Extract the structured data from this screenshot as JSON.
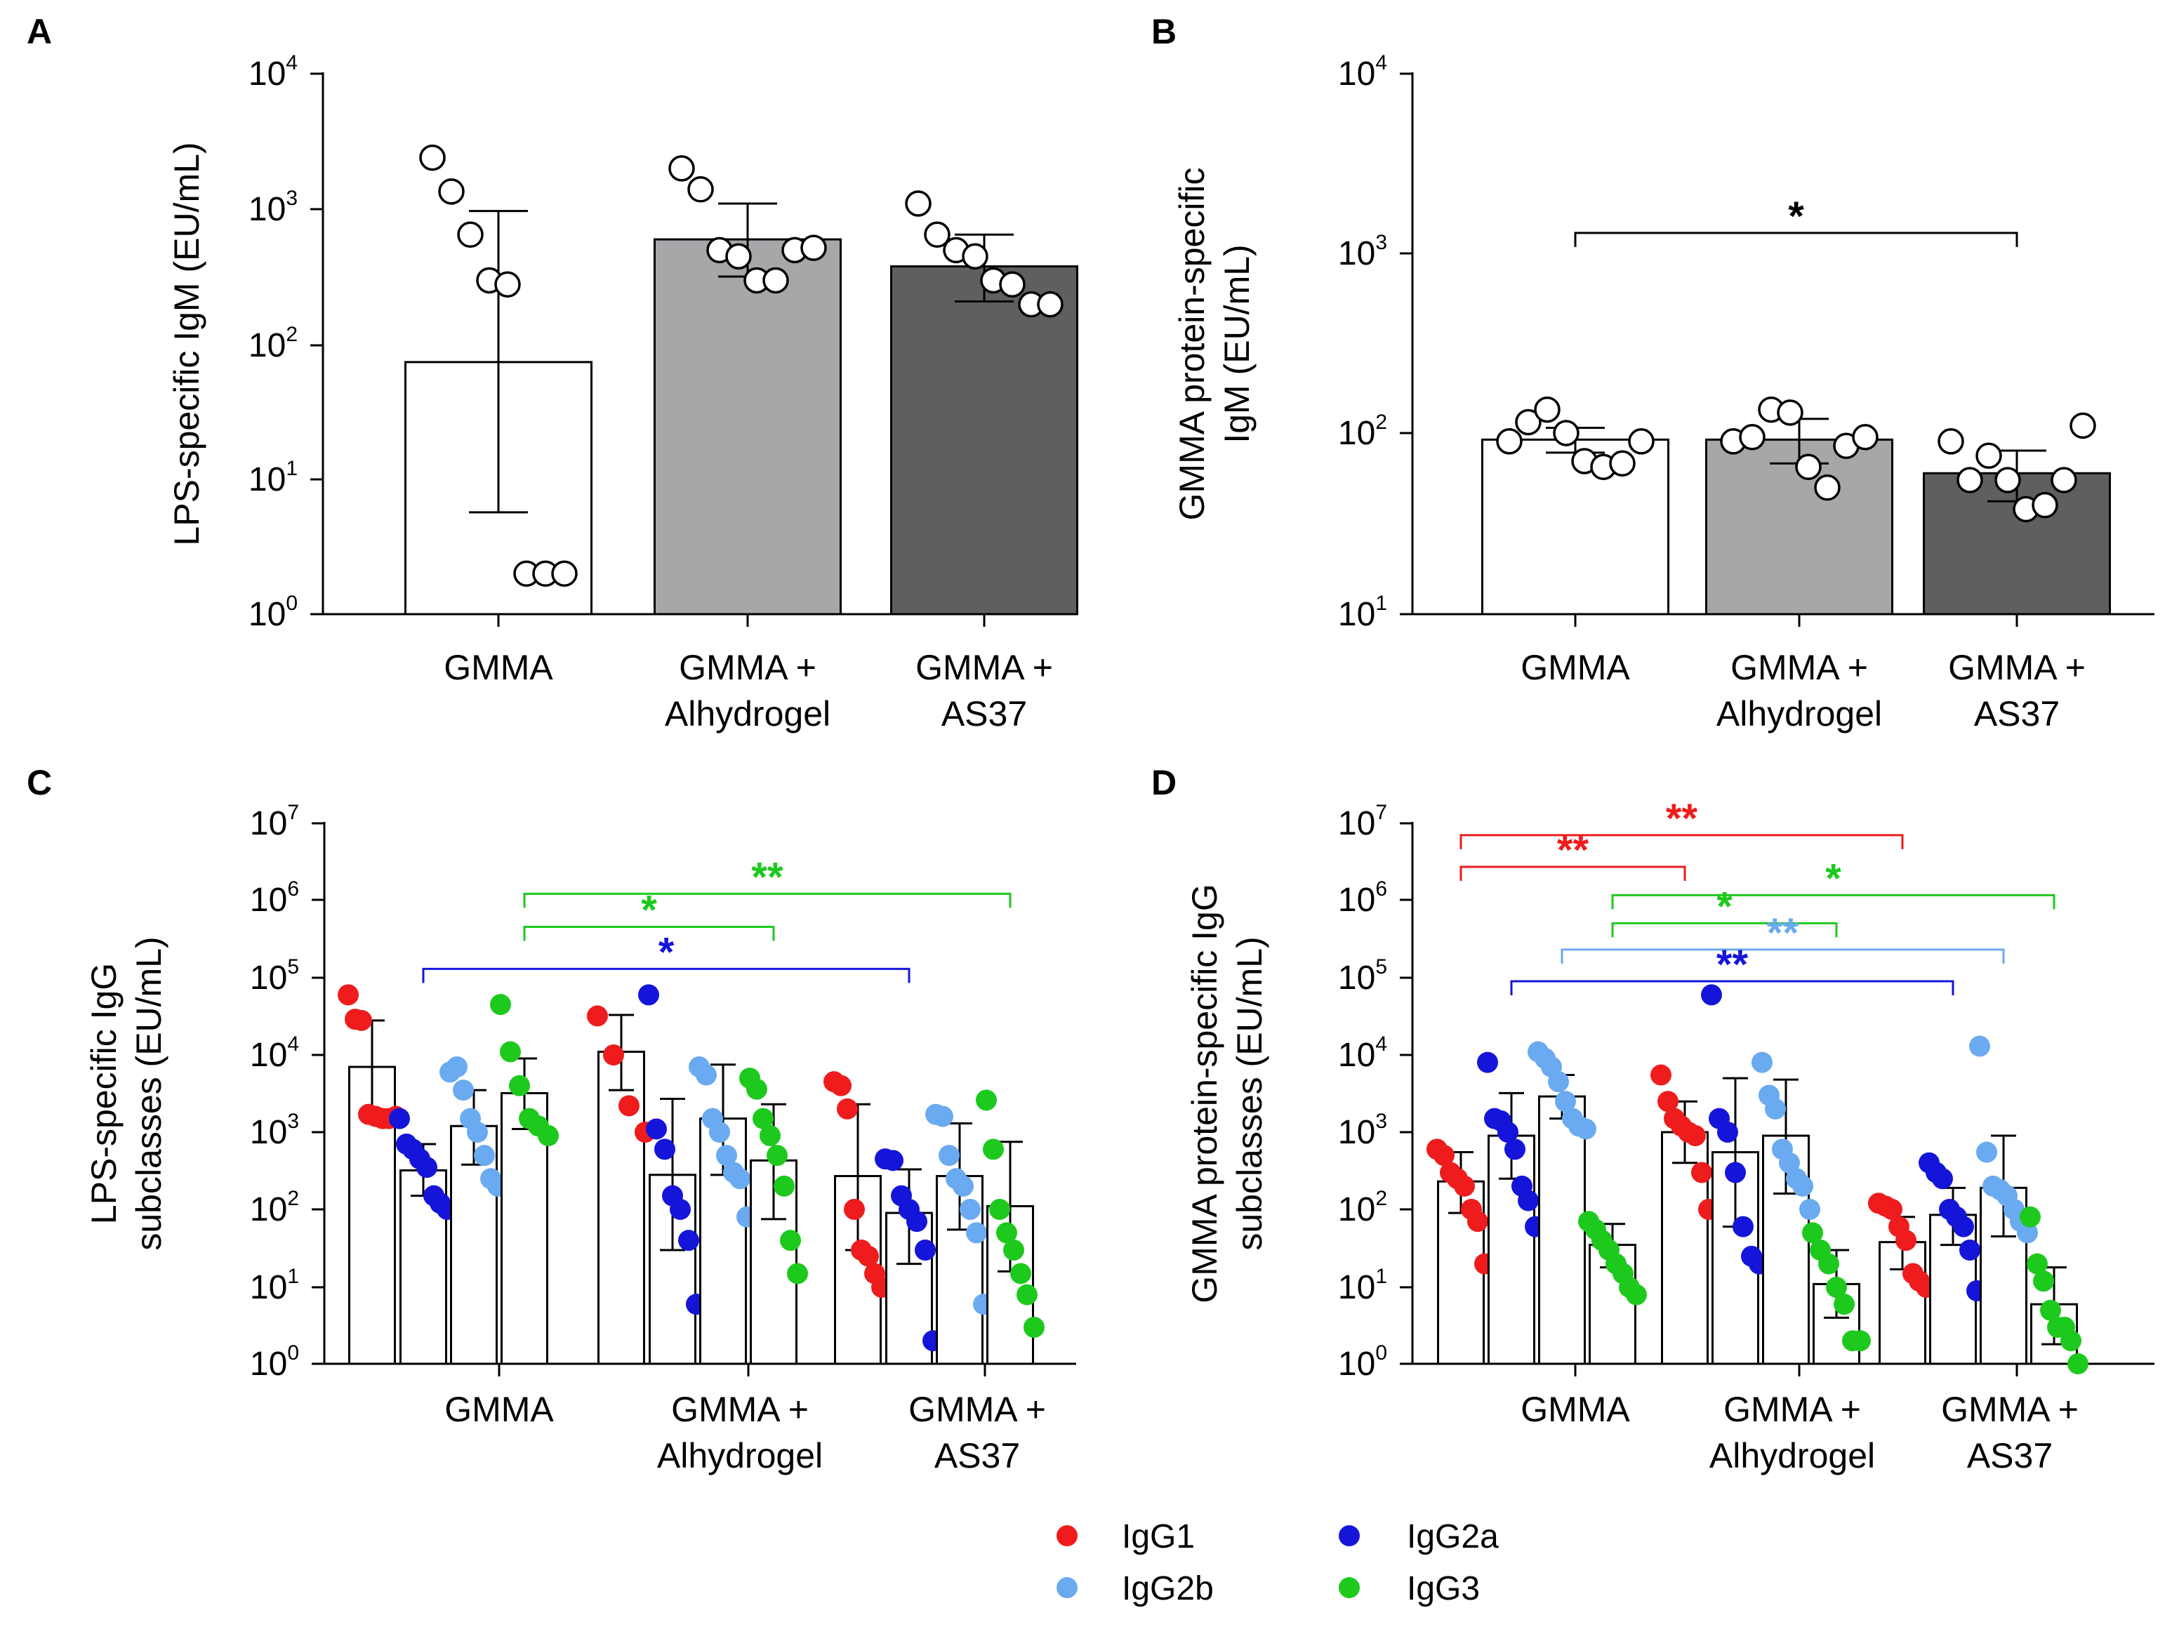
{
  "colors": {
    "IgG1": "#ee1c1c",
    "IgG2a": "#1515d9",
    "IgG2b": "#6aaaf0",
    "IgG3": "#1ec91e",
    "bar_white": "#ffffff",
    "bar_light_grey": "#a7a7aa",
    "bar_dark_grey": "#5f5f5f",
    "sig_black": "#000000"
  },
  "tick_base": "10",
  "chart_data": [
    {
      "id": "A",
      "letter": "A",
      "type": "bar",
      "scale": "log",
      "ylim": [
        1,
        10000
      ],
      "tick_exponents": [
        "0",
        "1",
        "2",
        "3",
        "4"
      ],
      "ylabel_lines": [
        "LPS-specific IgM (EU/mL)"
      ],
      "categories": [
        {
          "lines": [
            "GMMA"
          ]
        },
        {
          "lines": [
            "GMMA +",
            "Alhydrogel"
          ]
        },
        {
          "lines": [
            "GMMA +",
            "AS37"
          ]
        }
      ],
      "bars": [
        {
          "category": 0,
          "fill": "bar_white",
          "value": 75,
          "err_low": 5.7,
          "err_high": 970,
          "points": [
            2400,
            1350,
            650,
            300,
            280,
            2,
            2,
            2
          ]
        },
        {
          "category": 1,
          "fill": "bar_light_grey",
          "value": 600,
          "err_low": 320,
          "err_high": 1100,
          "points": [
            2000,
            1400,
            500,
            450,
            300,
            300,
            500,
            520
          ]
        },
        {
          "category": 2,
          "fill": "bar_dark_grey",
          "value": 380,
          "err_low": 210,
          "err_high": 650,
          "points": [
            1100,
            650,
            500,
            450,
            300,
            280,
            200,
            200
          ]
        }
      ],
      "significance": []
    },
    {
      "id": "B",
      "letter": "B",
      "type": "bar",
      "scale": "log",
      "ylim": [
        10,
        10000
      ],
      "tick_exponents": [
        "1",
        "2",
        "3",
        "4"
      ],
      "ylabel_lines": [
        "GMMA protein-specific",
        "IgM (EU/mL)"
      ],
      "categories": [
        {
          "lines": [
            "GMMA"
          ]
        },
        {
          "lines": [
            "GMMA +",
            "Alhydrogel"
          ]
        },
        {
          "lines": [
            "GMMA +",
            "AS37"
          ]
        }
      ],
      "bars": [
        {
          "category": 0,
          "fill": "bar_white",
          "value": 92,
          "err_low": 78,
          "err_high": 107,
          "points": [
            90,
            115,
            135,
            100,
            70,
            65,
            68,
            90
          ]
        },
        {
          "category": 1,
          "fill": "bar_light_grey",
          "value": 92,
          "err_low": 68,
          "err_high": 120,
          "points": [
            90,
            95,
            135,
            130,
            65,
            50,
            85,
            95
          ]
        },
        {
          "category": 2,
          "fill": "bar_dark_grey",
          "value": 60,
          "err_low": 42,
          "err_high": 80,
          "points": [
            90,
            55,
            75,
            55,
            38,
            40,
            55,
            110
          ]
        }
      ],
      "significance": [
        {
          "from_bar": 0,
          "to_bar": 2,
          "y": 1300,
          "label": "*",
          "color": "sig_black"
        }
      ]
    },
    {
      "id": "C",
      "letter": "C",
      "type": "bar",
      "scale": "log",
      "ylim": [
        1,
        10000000
      ],
      "tick_exponents": [
        "0",
        "1",
        "2",
        "3",
        "4",
        "5",
        "6",
        "7"
      ],
      "ylabel_lines": [
        "LPS-specific IgG",
        "subclasses (EU/mL)"
      ],
      "categories": [
        {
          "lines": [
            "GMMA"
          ]
        },
        {
          "lines": [
            "GMMA +",
            "Alhydrogel"
          ]
        },
        {
          "lines": [
            "GMMA +",
            "AS37"
          ]
        }
      ],
      "bars": [
        {
          "category": 0,
          "subclass": "IgG1",
          "value": 7000,
          "err_low": 1800,
          "err_high": 28000,
          "points": [
            60000,
            29000,
            28000,
            1700,
            1600,
            1500,
            1500,
            1600
          ]
        },
        {
          "category": 0,
          "subclass": "IgG2a",
          "value": 320,
          "err_low": 150,
          "err_high": 700,
          "points": [
            1500,
            700,
            600,
            450,
            350,
            150,
            120,
            100
          ]
        },
        {
          "category": 0,
          "subclass": "IgG2b",
          "value": 1200,
          "err_low": 380,
          "err_high": 3500,
          "points": [
            6000,
            7000,
            3500,
            1500,
            1000,
            500,
            250,
            200
          ]
        },
        {
          "category": 0,
          "subclass": "IgG3",
          "value": 3200,
          "err_low": 1100,
          "err_high": 9000,
          "points": [
            45000,
            11000,
            4000,
            1500,
            1200,
            900
          ]
        },
        {
          "category": 1,
          "subclass": "IgG1",
          "value": 11000,
          "err_low": 3500,
          "err_high": 33000,
          "points": [
            32000,
            10000,
            2200,
            1000
          ]
        },
        {
          "category": 1,
          "subclass": "IgG2a",
          "value": 280,
          "err_low": 30,
          "err_high": 2700,
          "points": [
            60000,
            1100,
            600,
            150,
            100,
            40,
            6
          ]
        },
        {
          "category": 1,
          "subclass": "IgG2b",
          "value": 1500,
          "err_low": 280,
          "err_high": 7500,
          "points": [
            7000,
            5500,
            1500,
            1000,
            500,
            300,
            250,
            80
          ]
        },
        {
          "category": 1,
          "subclass": "IgG3",
          "value": 430,
          "err_low": 75,
          "err_high": 2300,
          "points": [
            5000,
            3600,
            1500,
            900,
            500,
            200,
            40,
            15
          ]
        },
        {
          "category": 2,
          "subclass": "IgG1",
          "value": 270,
          "err_low": 30,
          "err_high": 2300,
          "points": [
            4500,
            4000,
            2000,
            100,
            30,
            25,
            15,
            10
          ]
        },
        {
          "category": 2,
          "subclass": "IgG2a",
          "value": 90,
          "err_low": 20,
          "err_high": 330,
          "points": [
            450,
            430,
            150,
            100,
            70,
            30,
            2
          ]
        },
        {
          "category": 2,
          "subclass": "IgG2b",
          "value": 270,
          "err_low": 55,
          "err_high": 1300,
          "points": [
            1700,
            1600,
            500,
            250,
            200,
            100,
            50,
            6
          ]
        },
        {
          "category": 2,
          "subclass": "IgG3",
          "value": 110,
          "err_low": 16,
          "err_high": 750,
          "points": [
            2600,
            600,
            100,
            50,
            30,
            15,
            8,
            3
          ]
        }
      ],
      "significance": [
        {
          "from_bar": 3,
          "to_bar": 11,
          "y": 1200000,
          "label": "**",
          "color": "IgG3"
        },
        {
          "from_bar": 3,
          "to_bar": 7,
          "y": 450000,
          "label": "*",
          "color": "IgG3"
        },
        {
          "from_bar": 1,
          "to_bar": 9,
          "y": 130000,
          "label": "*",
          "color": "IgG2a"
        }
      ]
    },
    {
      "id": "D",
      "letter": "D",
      "type": "bar",
      "scale": "log",
      "ylim": [
        1,
        10000000
      ],
      "tick_exponents": [
        "0",
        "1",
        "2",
        "3",
        "4",
        "5",
        "6",
        "7"
      ],
      "ylabel_lines": [
        "GMMA protein-specific IgG",
        "subclasses (EU/mL)"
      ],
      "categories": [
        {
          "lines": [
            "GMMA"
          ]
        },
        {
          "lines": [
            "GMMA +",
            "Alhydrogel"
          ]
        },
        {
          "lines": [
            "GMMA +",
            "AS37"
          ]
        }
      ],
      "bars": [
        {
          "category": 0,
          "subclass": "IgG1",
          "value": 230,
          "err_low": 90,
          "err_high": 550,
          "points": [
            600,
            500,
            300,
            250,
            200,
            100,
            70,
            20
          ]
        },
        {
          "category": 0,
          "subclass": "IgG2a",
          "value": 900,
          "err_low": 250,
          "err_high": 3200,
          "points": [
            8000,
            1500,
            1400,
            1000,
            600,
            200,
            130,
            60
          ]
        },
        {
          "category": 0,
          "subclass": "IgG2b",
          "value": 2900,
          "err_low": 1500,
          "err_high": 5500,
          "points": [
            11000,
            9000,
            7000,
            4500,
            2500,
            1500,
            1200,
            1100
          ]
        },
        {
          "category": 0,
          "subclass": "IgG3",
          "value": 35,
          "err_low": 18,
          "err_high": 65,
          "points": [
            70,
            55,
            40,
            30,
            20,
            15,
            10,
            8
          ]
        },
        {
          "category": 1,
          "subclass": "IgG1",
          "value": 1000,
          "err_low": 400,
          "err_high": 2500,
          "points": [
            5500,
            2500,
            1500,
            1200,
            1000,
            900,
            300,
            100
          ]
        },
        {
          "category": 1,
          "subclass": "IgG2a",
          "value": 550,
          "err_low": 60,
          "err_high": 5000,
          "points": [
            60000,
            1500,
            1000,
            300,
            60,
            25,
            20
          ]
        },
        {
          "category": 1,
          "subclass": "IgG2b",
          "value": 900,
          "err_low": 160,
          "err_high": 4800,
          "points": [
            8000,
            3000,
            2000,
            600,
            400,
            250,
            200,
            100
          ]
        },
        {
          "category": 1,
          "subclass": "IgG3",
          "value": 11,
          "err_low": 4,
          "err_high": 30,
          "points": [
            50,
            30,
            20,
            10,
            6,
            2,
            2
          ]
        },
        {
          "category": 2,
          "subclass": "IgG1",
          "value": 38,
          "err_low": 17,
          "err_high": 80,
          "points": [
            120,
            110,
            100,
            60,
            40,
            15,
            12,
            10
          ]
        },
        {
          "category": 2,
          "subclass": "IgG2a",
          "value": 85,
          "err_low": 35,
          "err_high": 190,
          "points": [
            400,
            300,
            250,
            100,
            80,
            60,
            30,
            9
          ]
        },
        {
          "category": 2,
          "subclass": "IgG2b",
          "value": 190,
          "err_low": 45,
          "err_high": 900,
          "points": [
            13000,
            550,
            200,
            180,
            150,
            100,
            70,
            50
          ]
        },
        {
          "category": 2,
          "subclass": "IgG3",
          "value": 6,
          "err_low": 1.8,
          "err_high": 18,
          "points": [
            80,
            20,
            12,
            5,
            3,
            3,
            2,
            1
          ]
        }
      ],
      "significance": [
        {
          "from_bar": 0,
          "to_bar": 8,
          "y": 7000000,
          "label": "**",
          "color": "IgG1"
        },
        {
          "from_bar": 0,
          "to_bar": 4,
          "y": 2700000,
          "label": "**",
          "color": "IgG1"
        },
        {
          "from_bar": 3,
          "to_bar": 11,
          "y": 1150000,
          "label": "*",
          "color": "IgG3"
        },
        {
          "from_bar": 3,
          "to_bar": 7,
          "y": 500000,
          "label": "*",
          "color": "IgG3"
        },
        {
          "from_bar": 2,
          "to_bar": 10,
          "y": 230000,
          "label": "**",
          "color": "IgG2b"
        },
        {
          "from_bar": 1,
          "to_bar": 9,
          "y": 90000,
          "label": "**",
          "color": "IgG2a"
        }
      ]
    }
  ],
  "legend": [
    {
      "label": "IgG1",
      "color": "IgG1"
    },
    {
      "label": "IgG2a",
      "color": "IgG2a"
    },
    {
      "label": "IgG2b",
      "color": "IgG2b"
    },
    {
      "label": "IgG3",
      "color": "IgG3"
    }
  ]
}
